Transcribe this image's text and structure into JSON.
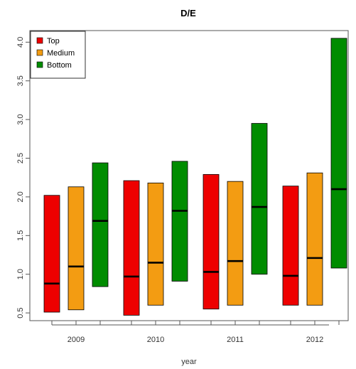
{
  "chart_data": {
    "type": "boxplot",
    "title": "D/E",
    "xlabel": "year",
    "ylabel": "",
    "ylim": [
      0.4,
      4.15
    ],
    "yticks": [
      "0.5",
      "1.0",
      "1.5",
      "2.0",
      "2.5",
      "3.0",
      "3.5",
      "4.0"
    ],
    "categories": [
      "2009",
      "2010",
      "2011",
      "2012"
    ],
    "legend_position": "top-left",
    "grid": false,
    "series": [
      {
        "name": "Top",
        "color": "#ee0000",
        "values": [
          {
            "low": 0.51,
            "median": 0.88,
            "high": 2.02
          },
          {
            "low": 0.47,
            "median": 0.97,
            "high": 2.21
          },
          {
            "low": 0.55,
            "median": 1.03,
            "high": 2.29
          },
          {
            "low": 0.6,
            "median": 0.98,
            "high": 2.14
          }
        ]
      },
      {
        "name": "Medium",
        "color": "#f39c12",
        "values": [
          {
            "low": 0.54,
            "median": 1.1,
            "high": 2.13
          },
          {
            "low": 0.6,
            "median": 1.15,
            "high": 2.18
          },
          {
            "low": 0.6,
            "median": 1.17,
            "high": 2.2
          },
          {
            "low": 0.6,
            "median": 1.21,
            "high": 2.31
          }
        ]
      },
      {
        "name": "Bottom",
        "color": "#008c00",
        "values": [
          {
            "low": 0.84,
            "median": 1.69,
            "high": 2.44
          },
          {
            "low": 0.91,
            "median": 1.82,
            "high": 2.46
          },
          {
            "low": 1.0,
            "median": 1.87,
            "high": 2.95
          },
          {
            "low": 1.08,
            "median": 2.1,
            "high": 4.05
          }
        ]
      }
    ]
  }
}
